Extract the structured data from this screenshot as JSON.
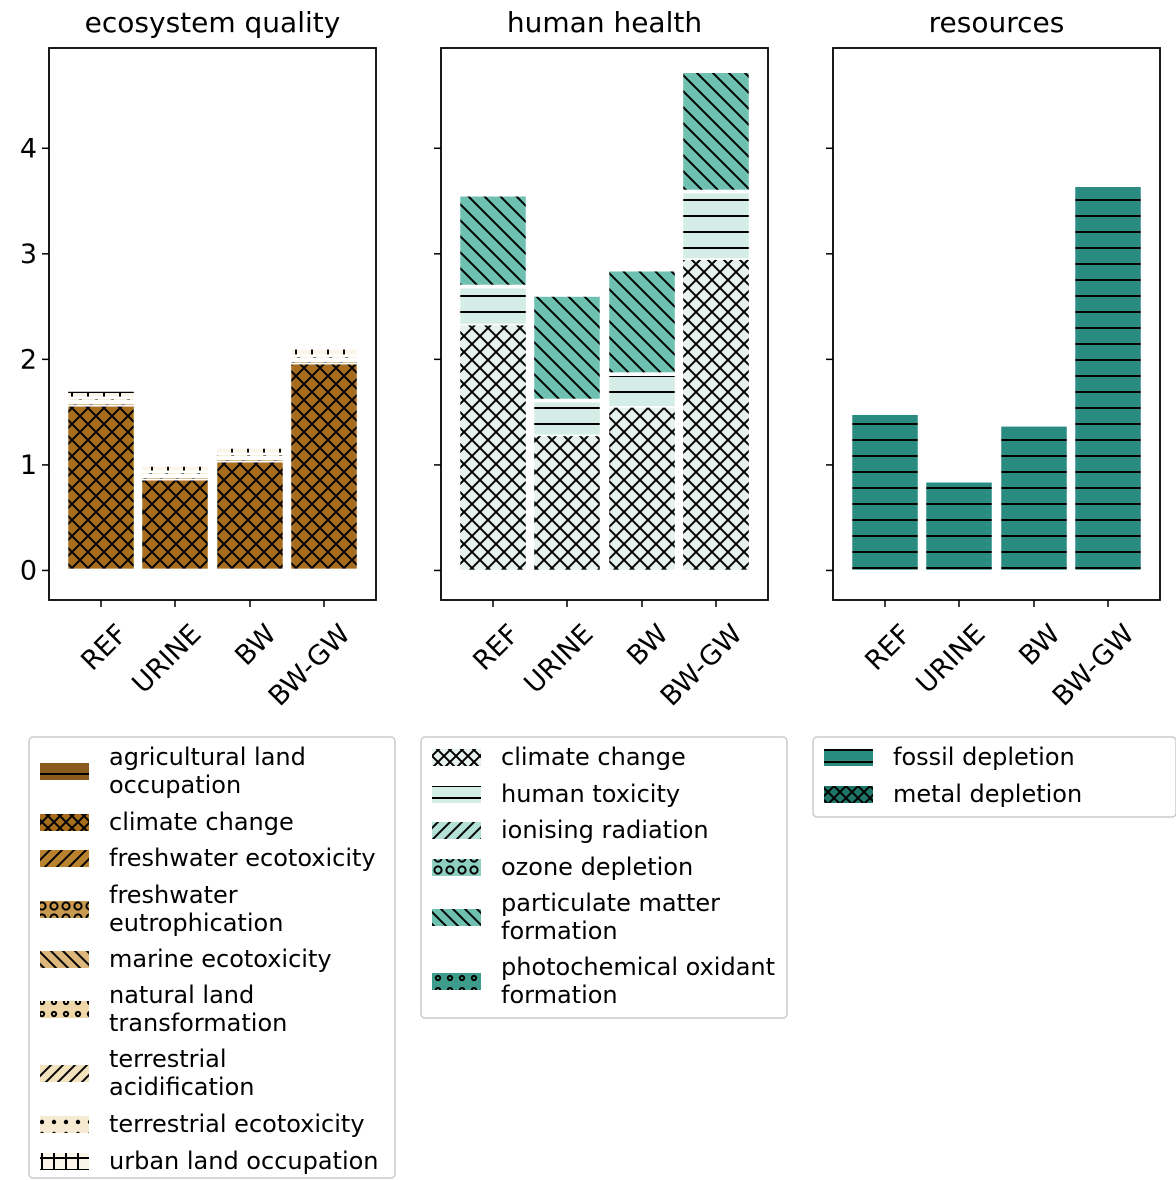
{
  "chart_data": [
    {
      "type": "bar",
      "stacked": true,
      "title": "ecosystem quality",
      "categories": [
        "REF",
        "URINE",
        "BW",
        "BW-GW"
      ],
      "ylim": [
        -0.28,
        4.95
      ],
      "yticks": [
        "0",
        "1",
        "2",
        "3",
        "4"
      ],
      "grid": false,
      "legend_position": "below",
      "series": [
        {
          "name": "agricultural land occupation",
          "values": [
            0.01,
            0.01,
            0.01,
            0.01
          ],
          "color": "#8B5A1E",
          "hatch": "hlines"
        },
        {
          "name": "climate change",
          "values": [
            1.55,
            0.85,
            1.02,
            1.95
          ],
          "color": "#A66D1F",
          "hatch": "cross"
        },
        {
          "name": "freshwater ecotoxicity",
          "values": [
            0.02,
            0.02,
            0.02,
            0.02
          ],
          "color": "#B9822F",
          "hatch": "slash"
        },
        {
          "name": "freshwater eutrophication",
          "values": [
            0.01,
            0.01,
            0.01,
            0.01
          ],
          "color": "#C99A4E",
          "hatch": "circles"
        },
        {
          "name": "marine ecotoxicity",
          "values": [
            0.01,
            0.01,
            0.01,
            0.01
          ],
          "color": "#DDB67A",
          "hatch": "backslash"
        },
        {
          "name": "natural land transformation",
          "values": [
            0.01,
            0.01,
            0.01,
            0.01
          ],
          "color": "#EFD7A8",
          "hatch": "smallcircles"
        },
        {
          "name": "terrestrial acidification",
          "values": [
            0.02,
            0.02,
            0.02,
            0.02
          ],
          "color": "#F3E2BE",
          "hatch": "slash"
        },
        {
          "name": "terrestrial ecotoxicity",
          "values": [
            0.01,
            0.01,
            0.01,
            0.01
          ],
          "color": "#F6EAD2",
          "hatch": "dots"
        },
        {
          "name": "urban land occupation",
          "values": [
            0.06,
            0.05,
            0.05,
            0.06
          ],
          "color": "#FBF5E9",
          "hatch": "plus"
        }
      ]
    },
    {
      "type": "bar",
      "stacked": true,
      "title": "human health",
      "categories": [
        "REF",
        "URINE",
        "BW",
        "BW-GW"
      ],
      "ylim": [
        -0.28,
        4.95
      ],
      "grid": false,
      "legend_position": "below",
      "series": [
        {
          "name": "climate change",
          "values": [
            2.33,
            1.28,
            1.55,
            2.95
          ],
          "color": "#E6F2EE",
          "hatch": "cross"
        },
        {
          "name": "human toxicity",
          "values": [
            0.35,
            0.32,
            0.3,
            0.63
          ],
          "color": "#D4EDE6",
          "hatch": "hlines"
        },
        {
          "name": "ionising radiation",
          "values": [
            0.01,
            0.01,
            0.01,
            0.01
          ],
          "color": "#B4E0D5",
          "hatch": "slash"
        },
        {
          "name": "ozone depletion",
          "values": [
            0.01,
            0.01,
            0.01,
            0.01
          ],
          "color": "#8ED0C0",
          "hatch": "circles"
        },
        {
          "name": "particulate matter formation",
          "values": [
            0.85,
            0.98,
            0.97,
            1.12
          ],
          "color": "#6EC1B0",
          "hatch": "backslash"
        },
        {
          "name": "photochemical oxidant formation",
          "values": [
            0.0,
            0.0,
            0.0,
            0.0
          ],
          "color": "#3E9C8D",
          "hatch": "smallcircles"
        }
      ]
    },
    {
      "type": "bar",
      "stacked": true,
      "title": "resources",
      "categories": [
        "REF",
        "URINE",
        "BW",
        "BW-GW"
      ],
      "ylim": [
        -0.28,
        4.95
      ],
      "grid": false,
      "legend_position": "below",
      "series": [
        {
          "name": "fossil depletion",
          "values": [
            1.48,
            0.84,
            1.37,
            3.64
          ],
          "color": "#2A8C80",
          "hatch": "hlines"
        },
        {
          "name": "metal depletion",
          "values": [
            0.0,
            0.0,
            0.0,
            0.0
          ],
          "color": "#1E7568",
          "hatch": "cross"
        }
      ]
    }
  ]
}
